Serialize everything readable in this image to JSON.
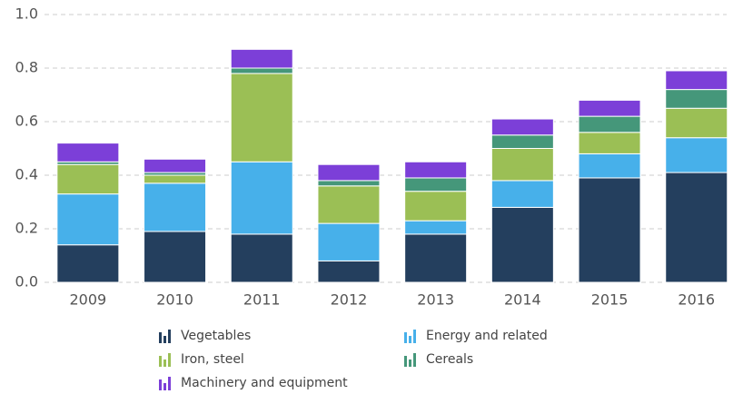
{
  "chart_data": {
    "type": "stacked-bar",
    "categories": [
      "2009",
      "2010",
      "2011",
      "2012",
      "2013",
      "2014",
      "2015",
      "2016"
    ],
    "series": [
      {
        "name": "Vegetables",
        "color": "#243f5e",
        "values": [
          0.14,
          0.19,
          0.18,
          0.08,
          0.18,
          0.28,
          0.39,
          0.41
        ]
      },
      {
        "name": "Energy and related",
        "color": "#47b0ea",
        "values": [
          0.19,
          0.18,
          0.27,
          0.14,
          0.05,
          0.1,
          0.09,
          0.13
        ]
      },
      {
        "name": "Iron, steel",
        "color": "#9bbf55",
        "values": [
          0.11,
          0.03,
          0.33,
          0.14,
          0.11,
          0.12,
          0.08,
          0.11
        ]
      },
      {
        "name": "Cereals",
        "color": "#45977a",
        "values": [
          0.01,
          0.01,
          0.02,
          0.02,
          0.05,
          0.05,
          0.06,
          0.07
        ]
      },
      {
        "name": "Machinery and equipment",
        "color": "#7c3fd8",
        "values": [
          0.07,
          0.05,
          0.07,
          0.06,
          0.06,
          0.06,
          0.06,
          0.07
        ]
      }
    ],
    "ylim": [
      0,
      1
    ],
    "yticks": [
      {
        "value": 0,
        "label": "0.0"
      },
      0.2,
      0.4,
      0.6,
      0.8,
      {
        "value": 1,
        "label": "1.0"
      }
    ],
    "grid": true
  }
}
